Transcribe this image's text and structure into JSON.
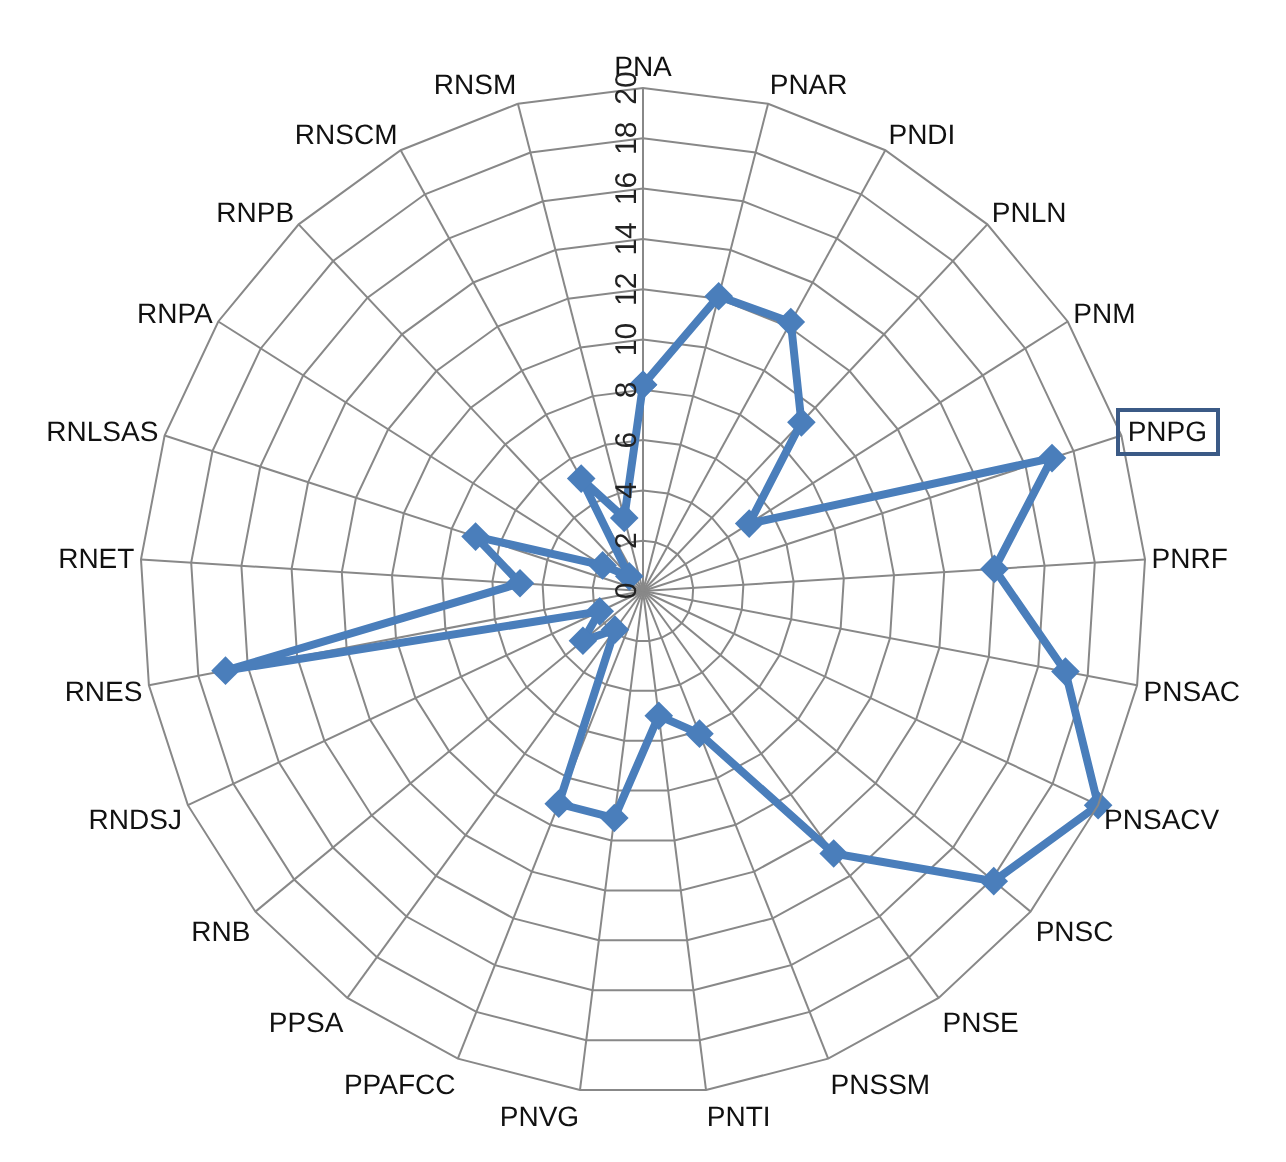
{
  "chart_data": {
    "type": "radar",
    "categories": [
      "PNA",
      "PNAR",
      "PNDI",
      "PNLN",
      "PNM",
      "PNPG",
      "PNRF",
      "PNSAC",
      "PNSACV",
      "PNSC",
      "PNSE",
      "PNSSM",
      "PNTI",
      "PNVG",
      "PPAFCC",
      "PPSA",
      "RNB",
      "RNDSJ",
      "RNES",
      "RNET",
      "RNLSAS",
      "RNPA",
      "RNPB",
      "RNSCM",
      "RNSM"
    ],
    "series": [
      {
        "color": "#4a7ebb",
        "values": [
          8.2,
          12.1,
          12.2,
          9.2,
          5.0,
          17.1,
          14.0,
          17.1,
          20,
          18.1,
          12.9,
          6.1,
          5.0,
          9.1,
          9.1,
          1.9,
          3.1,
          1.9,
          16.9,
          4.9,
          7.0,
          1.9,
          0.8,
          5.1,
          3.0
        ]
      }
    ],
    "ylim": [
      0,
      20
    ],
    "yticks": [
      0,
      2,
      4,
      6,
      8,
      10,
      12,
      14,
      16,
      18,
      20
    ],
    "grid": true,
    "marker": "diamond",
    "line_style": "solid"
  }
}
